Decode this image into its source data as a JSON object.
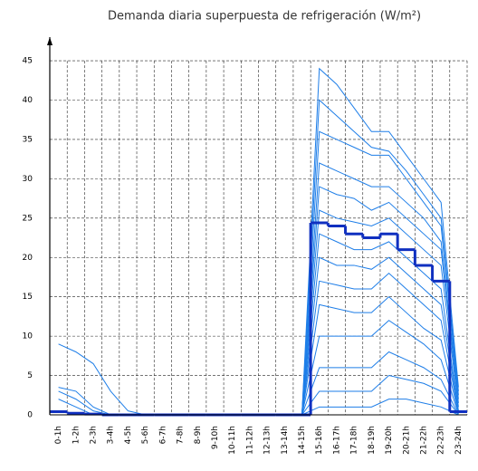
{
  "chart_data": {
    "type": "line",
    "title": "Demanda diaria superpuesta de refrigeración (W/m²)",
    "categories": [
      "0-1h",
      "1-2h",
      "2-3h",
      "3-4h",
      "4-5h",
      "5-6h",
      "6-7h",
      "7-8h",
      "8-9h",
      "9-10h",
      "10-11h",
      "11-12h",
      "12-13h",
      "13-14h",
      "14-15h",
      "15-16h",
      "16-17h",
      "17-18h",
      "18-19h",
      "19-20h",
      "20-21h",
      "21-22h",
      "22-23h",
      "23-24h"
    ],
    "ylim": [
      0,
      48
    ],
    "yticks": [
      0,
      5,
      10,
      15,
      20,
      25,
      30,
      35,
      40,
      45
    ],
    "grid": true,
    "series": [
      {
        "color": "#1e7ee8",
        "values": [
          9,
          8,
          6.5,
          3,
          0.5,
          0,
          0,
          0,
          0,
          0,
          0,
          0,
          0,
          0,
          0,
          44,
          42,
          39,
          36,
          36,
          33,
          30,
          27,
          3.5
        ]
      },
      {
        "color": "#1e7ee8",
        "values": [
          3.5,
          3,
          1,
          0,
          0,
          0,
          0,
          0,
          0,
          0,
          0,
          0,
          0,
          0,
          0,
          40,
          38,
          36,
          34,
          33.5,
          31,
          28,
          25,
          3
        ]
      },
      {
        "color": "#1e7ee8",
        "values": [
          3,
          2,
          0.5,
          0,
          0,
          0,
          0,
          0,
          0,
          0,
          0,
          0,
          0,
          0,
          0,
          36,
          35,
          34,
          33,
          33,
          30,
          27,
          24,
          2.5
        ]
      },
      {
        "color": "#1e7ee8",
        "values": [
          2,
          1,
          0,
          0,
          0,
          0,
          0,
          0,
          0,
          0,
          0,
          0,
          0,
          0,
          0,
          32,
          31,
          30,
          29,
          29,
          27,
          25,
          22,
          2
        ]
      },
      {
        "color": "#1e7ee8",
        "values": [
          0,
          0,
          0,
          0,
          0,
          0,
          0,
          0,
          0,
          0,
          0,
          0,
          0,
          0,
          0,
          29,
          28,
          27.5,
          26,
          27,
          25,
          23,
          21,
          1.5
        ]
      },
      {
        "color": "#1e7ee8",
        "values": [
          0,
          0,
          0,
          0,
          0,
          0,
          0,
          0,
          0,
          0,
          0,
          0,
          0,
          0,
          0,
          26,
          25,
          24.5,
          24,
          25,
          23,
          21,
          19,
          1
        ]
      },
      {
        "color": "#1e7ee8",
        "values": [
          0,
          0,
          0,
          0,
          0,
          0,
          0,
          0,
          0,
          0,
          0,
          0,
          0,
          0,
          0,
          23,
          22,
          21,
          21,
          22,
          20,
          18,
          16,
          0.5
        ]
      },
      {
        "color": "#1e7ee8",
        "values": [
          0,
          0,
          0,
          0,
          0,
          0,
          0,
          0,
          0,
          0,
          0,
          0,
          0,
          0,
          0,
          20,
          19,
          19,
          18.5,
          20,
          18,
          16,
          14,
          0.5
        ]
      },
      {
        "color": "#1e7ee8",
        "values": [
          0,
          0,
          0,
          0,
          0,
          0,
          0,
          0,
          0,
          0,
          0,
          0,
          0,
          0,
          0,
          17,
          16.5,
          16,
          16,
          18,
          16,
          14,
          12,
          0.3
        ]
      },
      {
        "color": "#1e7ee8",
        "values": [
          0,
          0,
          0,
          0,
          0,
          0,
          0,
          0,
          0,
          0,
          0,
          0,
          0,
          0,
          0,
          14,
          13.5,
          13,
          13,
          15,
          13,
          11,
          9.5,
          0.2
        ]
      },
      {
        "color": "#1e7ee8",
        "values": [
          0,
          0,
          0,
          0,
          0,
          0,
          0,
          0,
          0,
          0,
          0,
          0,
          0,
          0,
          0,
          10,
          10,
          10,
          10,
          12,
          10.5,
          9,
          7,
          0.1
        ]
      },
      {
        "color": "#1e7ee8",
        "values": [
          0,
          0,
          0,
          0,
          0,
          0,
          0,
          0,
          0,
          0,
          0,
          0,
          0,
          0,
          0,
          6,
          6,
          6,
          6,
          8,
          7,
          6,
          4.5,
          0
        ]
      },
      {
        "color": "#1e7ee8",
        "values": [
          0,
          0,
          0,
          0,
          0,
          0,
          0,
          0,
          0,
          0,
          0,
          0,
          0,
          0,
          0,
          3,
          3,
          3,
          3,
          5,
          4.5,
          4,
          3,
          0
        ]
      },
      {
        "color": "#1e7ee8",
        "values": [
          0,
          0,
          0,
          0,
          0,
          0,
          0,
          0,
          0,
          0,
          0,
          0,
          0,
          0,
          0,
          1,
          1,
          1,
          1,
          2,
          2,
          1.5,
          1,
          0
        ]
      },
      {
        "color": "#1030c0",
        "drawstyle": "steps",
        "values": [
          0.4,
          0.2,
          0.1,
          0,
          0,
          0,
          0,
          0,
          0,
          0,
          0,
          0,
          0,
          0,
          0,
          24.4,
          24,
          23,
          22.5,
          23,
          21,
          19,
          17,
          0.4
        ]
      }
    ]
  }
}
